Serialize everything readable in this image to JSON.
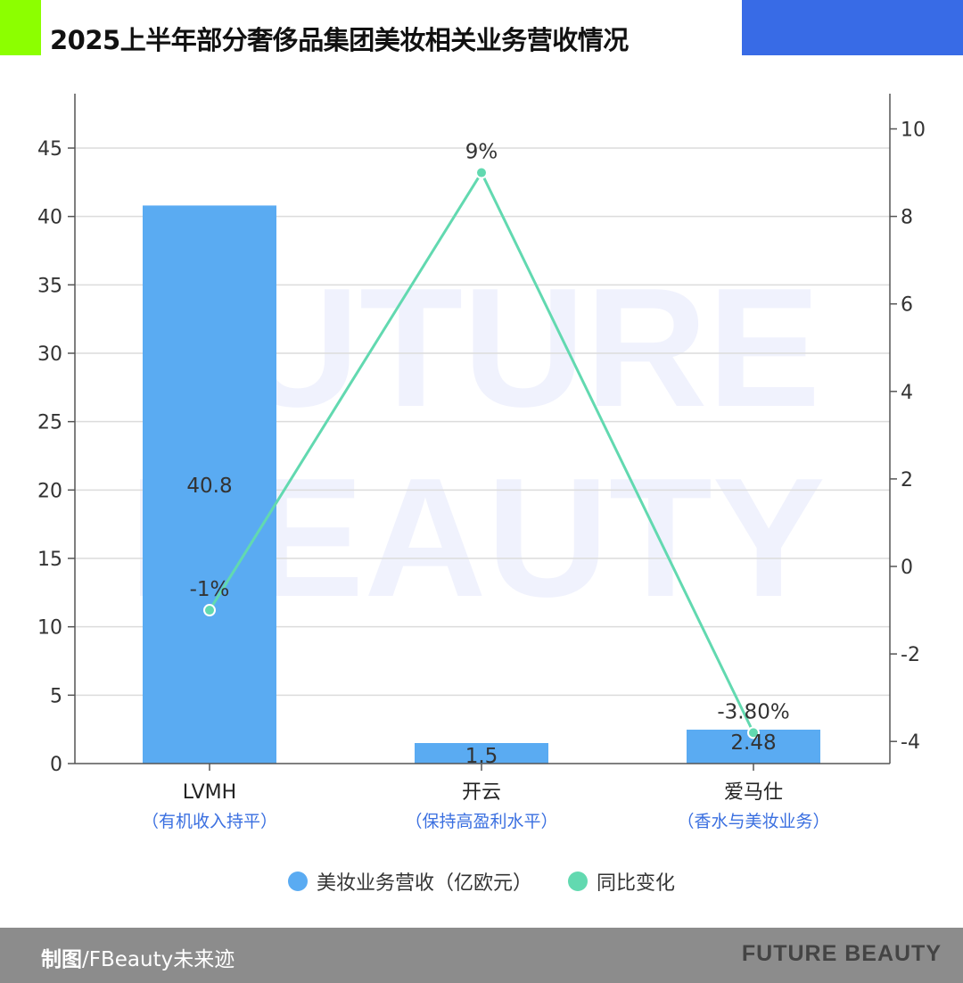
{
  "header": {
    "title": "2025上半年部分奢侈品集团美妆相关业务营收情况"
  },
  "footer": {
    "credit_bold": "制图",
    "credit_rest": "/FBeauty未来迹",
    "brand": "FUTURE BEAUTY"
  },
  "colors": {
    "bar": "#5aabf2",
    "line": "#62d9b0",
    "subtitle": "#3a6fe0",
    "accent_green": "#8cff00",
    "accent_blue": "#386be6"
  },
  "chart_data": {
    "type": "bar+line",
    "title": "2025上半年部分奢侈品集团美妆相关业务营收情况",
    "watermark": [
      "FUTURE",
      "BEAUTY"
    ],
    "categories": [
      "LVMH",
      "开云",
      "爱马仕"
    ],
    "category_notes": [
      "（有机收入持平）",
      "（保持高盈利水平）",
      "（香水与美妆业务）"
    ],
    "series": [
      {
        "name": "美妆业务营收（亿欧元）",
        "type": "bar",
        "axis": "left",
        "values": [
          40.8,
          1.5,
          2.48
        ],
        "labels": [
          "40.8",
          "1.5",
          "2.48"
        ]
      },
      {
        "name": "同比变化",
        "type": "line",
        "axis": "right",
        "values": [
          -1,
          9,
          -3.8
        ],
        "labels": [
          "-1%",
          "9%",
          "-3.80%"
        ]
      }
    ],
    "left_axis": {
      "ylim": [
        0,
        45
      ],
      "ticks": [
        "0",
        "5",
        "10",
        "15",
        "20",
        "25",
        "30",
        "35",
        "40",
        "45"
      ]
    },
    "right_axis": {
      "ylim": [
        -4,
        10
      ],
      "ticks": [
        "-4",
        "-2",
        "0",
        "2",
        "4",
        "6",
        "8",
        "10"
      ]
    },
    "grid": true,
    "legend": "bottom"
  }
}
